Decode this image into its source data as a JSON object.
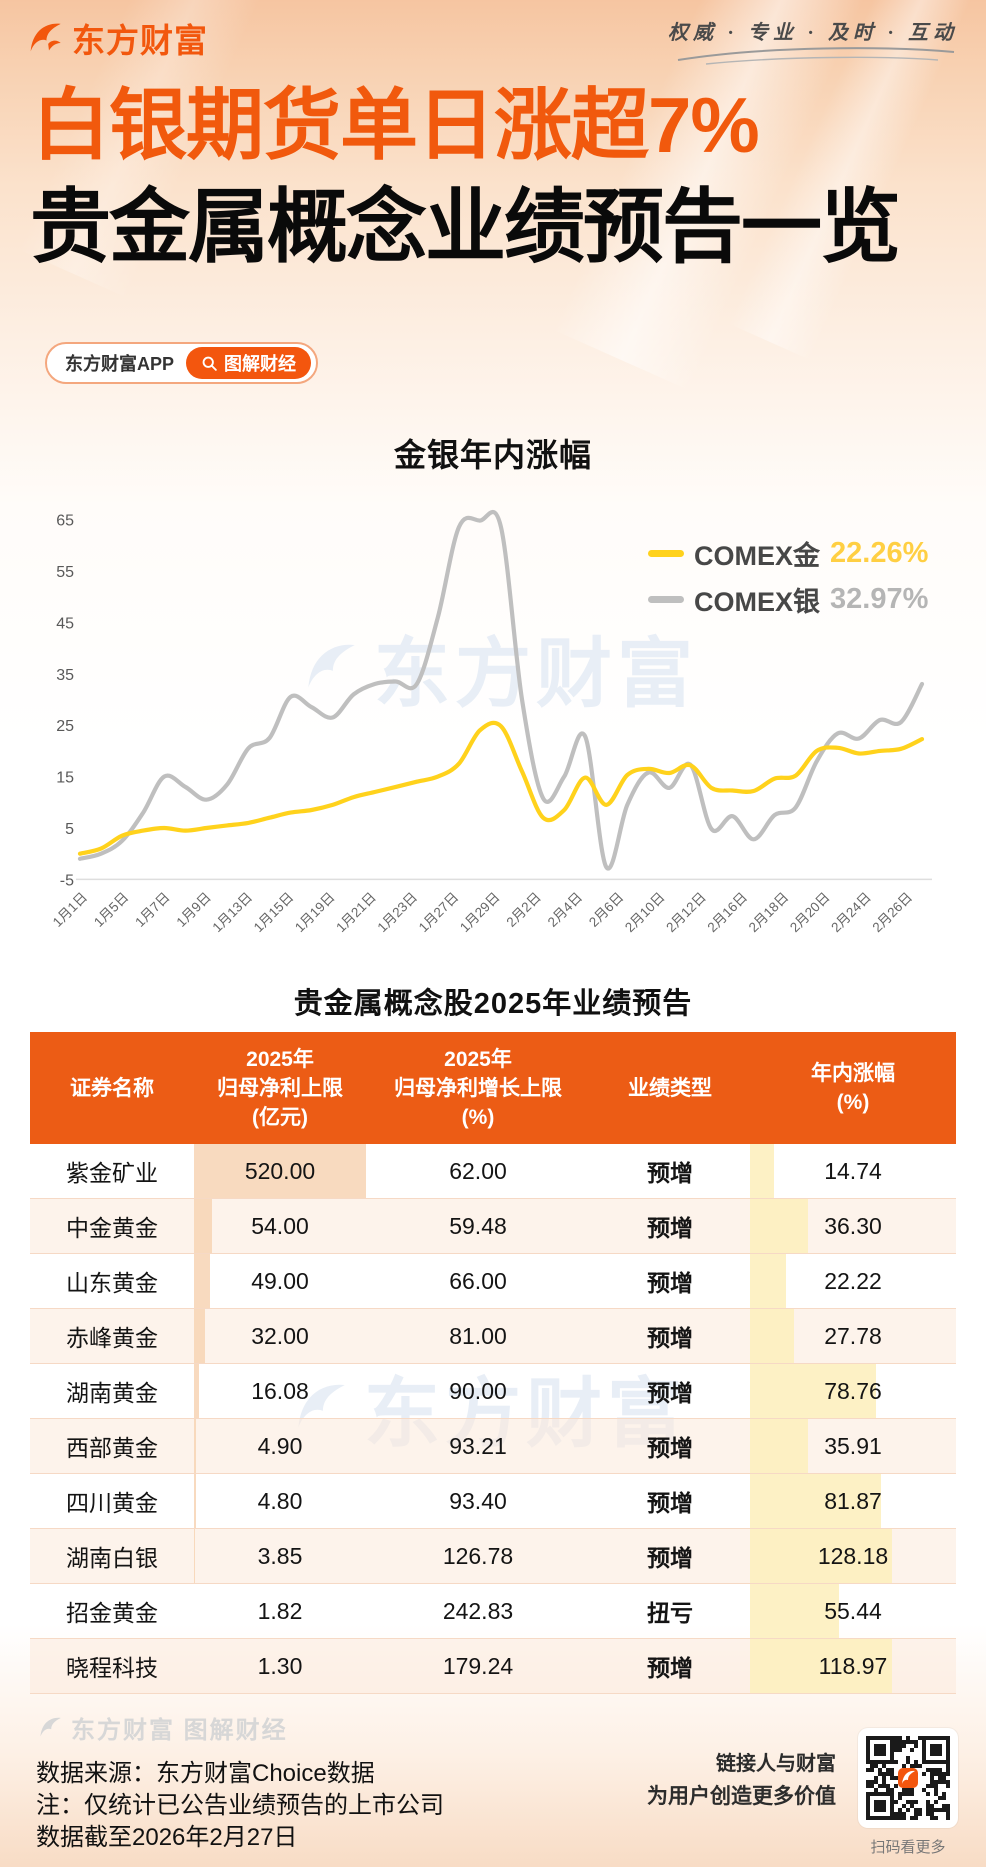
{
  "header": {
    "brand": "东方财富",
    "tagline": "权威 · 专业 · 及时 · 互动"
  },
  "title": {
    "line1": "白银期货单日涨超7%",
    "line2": "贵金属概念业绩预告一览"
  },
  "app_pill": {
    "app_label": "东方财富APP",
    "cta_label": "图解财经"
  },
  "chart_data": {
    "type": "line",
    "title": "金银年内涨幅",
    "unit": "%",
    "ylim": [
      -5,
      67
    ],
    "y_ticks": [
      65,
      55,
      45,
      35,
      25,
      15,
      5,
      -5
    ],
    "grid": "baseline-only",
    "legend_position": "right-top",
    "x_tick_labels": [
      "1月1日",
      "1月5日",
      "1月7日",
      "1月9日",
      "1月13日",
      "1月15日",
      "1月19日",
      "1月21日",
      "1月23日",
      "1月27日",
      "1月29日",
      "2月2日",
      "2月4日",
      "2月6日",
      "2月10日",
      "2月12日",
      "2月16日",
      "2月18日",
      "2月20日",
      "2月24日",
      "2月26日"
    ],
    "x_note": "tick labels mark every second data point of the series below",
    "series": [
      {
        "name": "COMEX银",
        "display_value": "32.97%",
        "color": "#bfbfbf",
        "value_color": "#b5b5b5",
        "values": [
          -1,
          0,
          2.5,
          8,
          15,
          13,
          10.5,
          13.5,
          20.5,
          22.5,
          30.5,
          28.5,
          26.5,
          31,
          33,
          33.5,
          33,
          46,
          63.5,
          64.8,
          63.5,
          30,
          10.8,
          15,
          22.8,
          -2.6,
          9.5,
          15.8,
          12.8,
          17.3,
          4.8,
          7.3,
          2.8,
          7.5,
          9,
          18,
          23.4,
          22.4,
          26,
          25.6,
          33
        ]
      },
      {
        "name": "COMEX金",
        "display_value": "22.26%",
        "color": "#ffd21c",
        "value_color": "#ffcf43",
        "values": [
          0,
          1,
          3.5,
          4.5,
          5,
          4.5,
          5,
          5.5,
          6,
          7,
          8,
          8.5,
          9.5,
          11,
          12,
          13,
          14,
          15,
          17.5,
          24,
          24.8,
          16,
          7,
          8.5,
          14.8,
          9.5,
          15.3,
          16.5,
          15.7,
          17.2,
          12.8,
          12.3,
          12.2,
          14.6,
          15.2,
          20,
          20.6,
          19.5,
          20,
          20.4,
          22.3
        ]
      }
    ],
    "legend_order": [
      "COMEX金",
      "COMEX银"
    ]
  },
  "table": {
    "title": "贵金属概念股2025年业绩预告",
    "columns": [
      {
        "lines": [
          "证券名称"
        ]
      },
      {
        "lines": [
          "2025年",
          "归母净利上限",
          "(亿元)"
        ]
      },
      {
        "lines": [
          "2025年",
          "归母净利增长上限",
          "(%)"
        ]
      },
      {
        "lines": [
          "业绩类型"
        ]
      },
      {
        "lines": [
          "年内涨幅",
          "(%)"
        ]
      }
    ],
    "rows": [
      {
        "name": "紫金矿业",
        "profit": "520.00",
        "growth": "62.00",
        "type": "预增",
        "change": "14.74"
      },
      {
        "name": "中金黄金",
        "profit": "54.00",
        "growth": "59.48",
        "type": "预增",
        "change": "36.30"
      },
      {
        "name": "山东黄金",
        "profit": "49.00",
        "growth": "66.00",
        "type": "预增",
        "change": "22.22"
      },
      {
        "name": "赤峰黄金",
        "profit": "32.00",
        "growth": "81.00",
        "type": "预增",
        "change": "27.78"
      },
      {
        "name": "湖南黄金",
        "profit": "16.08",
        "growth": "90.00",
        "type": "预增",
        "change": "78.76"
      },
      {
        "name": "西部黄金",
        "profit": "4.90",
        "growth": "93.21",
        "type": "预增",
        "change": "35.91"
      },
      {
        "name": "四川黄金",
        "profit": "4.80",
        "growth": "93.40",
        "type": "预增",
        "change": "81.87"
      },
      {
        "name": "湖南白银",
        "profit": "3.85",
        "growth": "126.78",
        "type": "预增",
        "change": "128.18"
      },
      {
        "name": "招金黄金",
        "profit": "1.82",
        "growth": "242.83",
        "type": "扭亏",
        "change": "55.44"
      },
      {
        "name": "晓程科技",
        "profit": "1.30",
        "growth": "179.24",
        "type": "预增",
        "change": "118.97"
      }
    ]
  },
  "watermark": {
    "brand": "东方财富"
  },
  "footer": {
    "logo_text": "东方财富 图解财经",
    "source": "数据来源：东方财富Choice数据",
    "note": "注：仅统计已公告业绩预告的上市公司",
    "cutoff": "数据截至2026年2月27日",
    "slogan1": "链接人与财富",
    "slogan2": "为用户创造更多价值",
    "qr_caption": "扫码看更多"
  },
  "colors": {
    "accent_orange": "#f2570d",
    "table_header": "#ec5c15",
    "gold_line": "#ffd21c",
    "silver_line": "#bfbfbf",
    "profit_bar": "#f7d3b4",
    "change_bar": "#fdefbf"
  }
}
